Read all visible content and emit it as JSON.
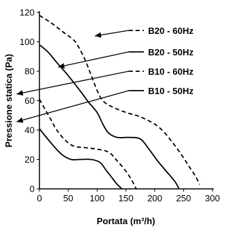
{
  "chart_data": {
    "type": "line",
    "xlabel": "Portata (m³/h)",
    "ylabel": "Pressione statica (Pa)",
    "xlim": [
      0,
      300
    ],
    "ylim": [
      0,
      120
    ],
    "xticks": [
      "0",
      "50",
      "100",
      "150",
      "200",
      "250",
      "300"
    ],
    "yticks": [
      "0",
      "20",
      "40",
      "60",
      "80",
      "100",
      "120"
    ],
    "grid": false,
    "legend_position": "top-right",
    "series": [
      {
        "name": "B20 - 60Hz",
        "style": "dashed",
        "points": [
          [
            0,
            118
          ],
          [
            20,
            113
          ],
          [
            40,
            107
          ],
          [
            60,
            101
          ],
          [
            70,
            95
          ],
          [
            80,
            87
          ],
          [
            90,
            77
          ],
          [
            100,
            67
          ],
          [
            110,
            60
          ],
          [
            125,
            56
          ],
          [
            150,
            52
          ],
          [
            175,
            49
          ],
          [
            200,
            44
          ],
          [
            215,
            39
          ],
          [
            230,
            32
          ],
          [
            245,
            24
          ],
          [
            260,
            15
          ],
          [
            270,
            9
          ],
          [
            278,
            3
          ]
        ]
      },
      {
        "name": "B20 - 50Hz",
        "style": "solid",
        "points": [
          [
            0,
            98
          ],
          [
            15,
            93
          ],
          [
            30,
            86
          ],
          [
            50,
            77
          ],
          [
            70,
            67
          ],
          [
            85,
            59
          ],
          [
            100,
            52
          ],
          [
            110,
            44
          ],
          [
            120,
            38
          ],
          [
            135,
            35
          ],
          [
            155,
            35
          ],
          [
            175,
            34
          ],
          [
            190,
            27
          ],
          [
            205,
            19
          ],
          [
            220,
            12
          ],
          [
            235,
            5
          ],
          [
            242,
            0
          ]
        ]
      },
      {
        "name": "B10 - 60Hz",
        "style": "dashed",
        "points": [
          [
            0,
            61
          ],
          [
            10,
            54
          ],
          [
            20,
            47
          ],
          [
            30,
            40
          ],
          [
            45,
            33
          ],
          [
            60,
            29
          ],
          [
            80,
            28
          ],
          [
            100,
            27
          ],
          [
            120,
            25
          ],
          [
            135,
            19
          ],
          [
            150,
            12
          ],
          [
            160,
            6
          ],
          [
            168,
            0
          ]
        ]
      },
      {
        "name": "B10 - 50Hz",
        "style": "solid",
        "points": [
          [
            0,
            41
          ],
          [
            10,
            36
          ],
          [
            25,
            29
          ],
          [
            40,
            23
          ],
          [
            55,
            20
          ],
          [
            70,
            20
          ],
          [
            90,
            20
          ],
          [
            105,
            18
          ],
          [
            115,
            13
          ],
          [
            125,
            8
          ],
          [
            135,
            3
          ],
          [
            143,
            0
          ]
        ]
      }
    ],
    "color": "#000000"
  }
}
